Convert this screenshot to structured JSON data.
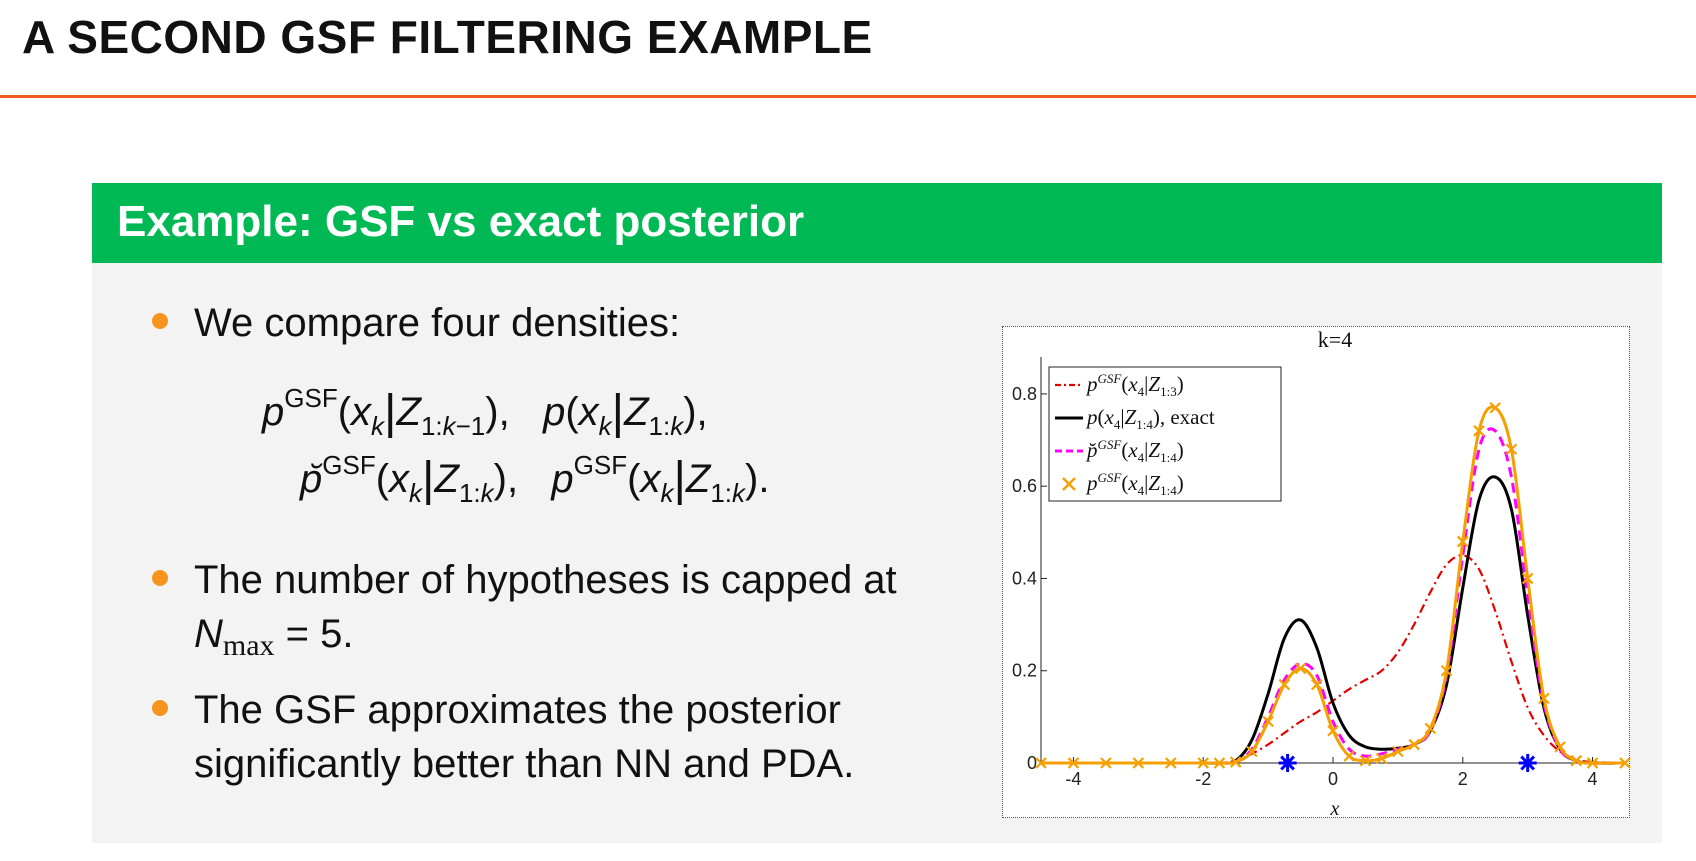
{
  "slide": {
    "title": "A SECOND GSF FILTERING EXAMPLE"
  },
  "block": {
    "title": "Example: GSF vs exact posterior",
    "bullets": [
      {
        "text": "We compare four densities:"
      },
      {
        "text_line1": "The number of hypotheses is capped at",
        "text_line2_suffix": " = 5."
      },
      {
        "text_line1": "The GSF approximates the posterior",
        "text_line2": "significantly better than NN and PDA."
      }
    ]
  },
  "colors": {
    "accent_orange": "#f15a22",
    "block_green": "#00b955",
    "bullet_orange": "#f7941d",
    "series_red": "#e60000",
    "series_black": "#000000",
    "series_magenta": "#ff00ff",
    "series_orange": "#f5a000",
    "measurement_blue": "#0000ff"
  },
  "chart_data": {
    "type": "line",
    "title": "k=4",
    "xlabel": "x",
    "ylabel": "",
    "xlim": [
      -4.5,
      4.5
    ],
    "ylim": [
      0,
      0.88
    ],
    "xticks": [
      -4,
      -2,
      0,
      2,
      4
    ],
    "yticks": [
      0,
      0.2,
      0.4,
      0.6,
      0.8
    ],
    "ytick_labels": [
      "0",
      "0.2",
      "0.4",
      "0.6",
      "0.8"
    ],
    "legend_position": "top-left",
    "grid": false,
    "x": [
      -4.5,
      -4.0,
      -3.5,
      -3.0,
      -2.5,
      -2.0,
      -1.75,
      -1.5,
      -1.25,
      -1.0,
      -0.75,
      -0.5,
      -0.25,
      0.0,
      0.25,
      0.5,
      0.75,
      1.0,
      1.25,
      1.5,
      1.75,
      2.0,
      2.25,
      2.5,
      2.75,
      3.0,
      3.25,
      3.5,
      3.75,
      4.0,
      4.5
    ],
    "series": [
      {
        "name": "p^{GSF}(x_4|Z_{1:3})",
        "style": "dash-dot",
        "values": [
          0,
          0,
          0,
          0,
          0,
          0,
          0,
          0.005,
          0.02,
          0.04,
          0.065,
          0.09,
          0.11,
          0.135,
          0.16,
          0.18,
          0.2,
          0.24,
          0.3,
          0.37,
          0.43,
          0.45,
          0.42,
          0.33,
          0.22,
          0.12,
          0.06,
          0.025,
          0.008,
          0.002,
          0
        ]
      },
      {
        "name": "p(x_4|Z_{1:4}), exact",
        "style": "solid",
        "values": [
          0,
          0,
          0,
          0,
          0,
          0,
          0,
          0.005,
          0.05,
          0.15,
          0.27,
          0.31,
          0.25,
          0.13,
          0.06,
          0.035,
          0.03,
          0.032,
          0.04,
          0.07,
          0.17,
          0.38,
          0.57,
          0.62,
          0.55,
          0.32,
          0.12,
          0.03,
          0.005,
          0,
          0
        ]
      },
      {
        "name": "p̆^{GSF}(x_4|Z_{1:4})",
        "style": "dashed",
        "values": [
          0,
          0,
          0,
          0,
          0,
          0,
          0,
          0.003,
          0.03,
          0.1,
          0.18,
          0.215,
          0.19,
          0.09,
          0.03,
          0.015,
          0.02,
          0.03,
          0.04,
          0.07,
          0.19,
          0.45,
          0.68,
          0.72,
          0.62,
          0.36,
          0.13,
          0.03,
          0.005,
          0,
          0
        ]
      },
      {
        "name": "p^{GSF}(x_4|Z_{1:4})",
        "style": "line-with-x-markers",
        "values": [
          0,
          0,
          0,
          0,
          0,
          0,
          0,
          0.002,
          0.025,
          0.09,
          0.17,
          0.205,
          0.17,
          0.07,
          0.015,
          0.005,
          0.01,
          0.025,
          0.04,
          0.075,
          0.2,
          0.48,
          0.72,
          0.77,
          0.68,
          0.4,
          0.14,
          0.035,
          0.005,
          0,
          0
        ]
      }
    ],
    "measurements": {
      "x": [
        -0.7,
        3.0
      ],
      "y": [
        0,
        0
      ]
    }
  }
}
